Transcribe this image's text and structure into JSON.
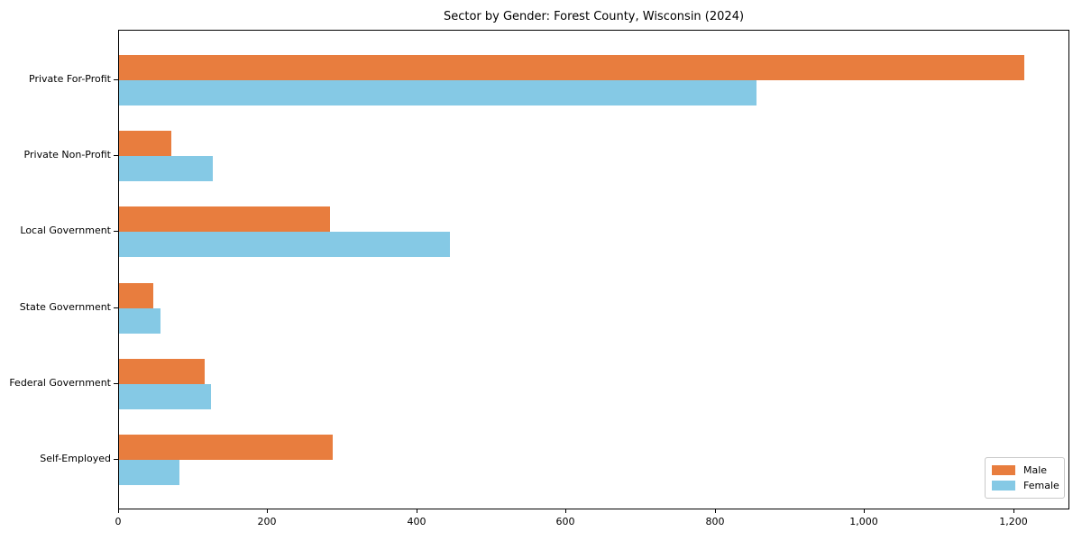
{
  "chart_data": {
    "type": "bar",
    "orientation": "horizontal",
    "title": "Sector by Gender: Forest County, Wisconsin (2024)",
    "xlabel": "",
    "ylabel": "",
    "categories": [
      "Private For-Profit",
      "Private Non-Profit",
      "Local Government",
      "State Government",
      "Federal Government",
      "Self-Employed"
    ],
    "series": [
      {
        "name": "Male",
        "color": "#e87d3e",
        "values": [
          1213,
          70,
          283,
          46,
          115,
          286
        ]
      },
      {
        "name": "Female",
        "color": "#85c9e5",
        "values": [
          854,
          126,
          443,
          55,
          123,
          81
        ]
      }
    ],
    "xlim": [
      0,
      1275
    ],
    "xticks": [
      0,
      200,
      400,
      600,
      800,
      1000,
      1200
    ],
    "xtick_labels": [
      "0",
      "200",
      "400",
      "600",
      "800",
      "1,000",
      "1,200"
    ],
    "grid": false,
    "legend": {
      "position": "lower right",
      "entries": [
        "Male",
        "Female"
      ]
    },
    "axis_color": "#000000",
    "background_color": "#ffffff"
  }
}
